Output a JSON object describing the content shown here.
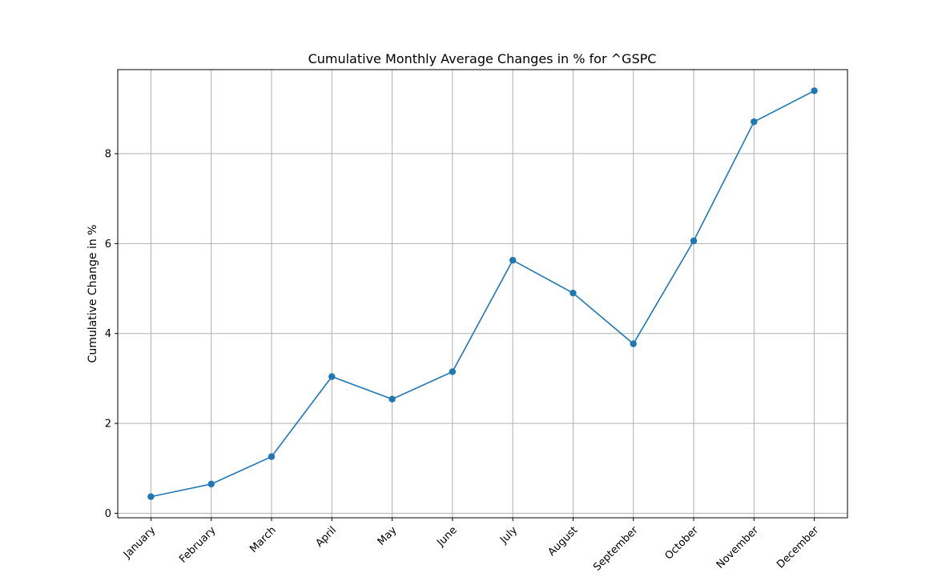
{
  "chart_data": {
    "type": "line",
    "title": "Cumulative Monthly Average Changes in % for ^GSPC",
    "xlabel": "",
    "ylabel": "Cumulative Change in %",
    "categories": [
      "January",
      "February",
      "March",
      "April",
      "May",
      "June",
      "July",
      "August",
      "September",
      "October",
      "November",
      "December"
    ],
    "series": [
      {
        "values": [
          0.37,
          0.65,
          1.26,
          3.04,
          2.54,
          3.15,
          5.63,
          4.9,
          3.77,
          6.06,
          8.71,
          9.4
        ]
      }
    ],
    "yticks": [
      0,
      2,
      4,
      6,
      8
    ],
    "ylim": [
      -0.1,
      9.87
    ],
    "grid": true,
    "line_color": "#1f77b4",
    "marker": "circle"
  }
}
